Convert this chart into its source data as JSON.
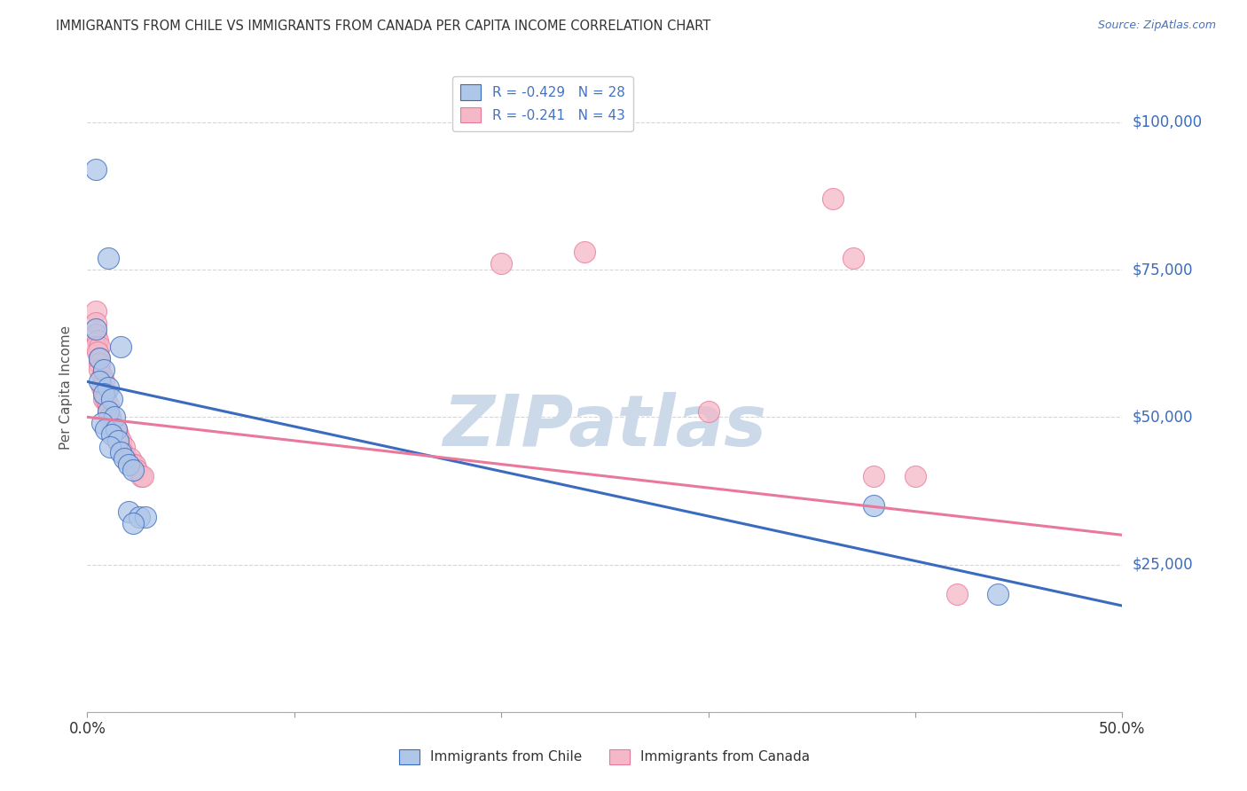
{
  "title": "IMMIGRANTS FROM CHILE VS IMMIGRANTS FROM CANADA PER CAPITA INCOME CORRELATION CHART",
  "source": "Source: ZipAtlas.com",
  "ylabel": "Per Capita Income",
  "xlim": [
    0.0,
    0.5
  ],
  "ylim": [
    0,
    110000
  ],
  "xtick_positions": [
    0.0,
    0.1,
    0.2,
    0.3,
    0.4,
    0.5
  ],
  "xticklabels": [
    "0.0%",
    "",
    "",
    "",
    "",
    "50.0%"
  ],
  "ytick_positions": [
    0,
    25000,
    50000,
    75000,
    100000
  ],
  "ytick_labels": [
    "",
    "$25,000",
    "$50,000",
    "$75,000",
    "$100,000"
  ],
  "chile_color": "#aec6e8",
  "canada_color": "#f4b8c8",
  "chile_line_color": "#3a6bbf",
  "canada_line_color": "#e8799a",
  "watermark_text": "ZIPatlas",
  "watermark_color": "#ccd9e8",
  "background_color": "#ffffff",
  "grid_color": "#cccccc",
  "legend1_R": "-0.429",
  "legend1_N": "28",
  "legend2_R": "-0.241",
  "legend2_N": "43",
  "legend1_label": "Immigrants from Chile",
  "legend2_label": "Immigrants from Canada",
  "chile_line_x0": 0.0,
  "chile_line_y0": 56000,
  "chile_line_x1": 0.5,
  "chile_line_y1": 18000,
  "canada_line_x0": 0.0,
  "canada_line_y0": 50000,
  "canada_line_x1": 0.5,
  "canada_line_y1": 30000,
  "chile_points": [
    [
      0.004,
      92000
    ],
    [
      0.01,
      77000
    ],
    [
      0.004,
      65000
    ],
    [
      0.016,
      62000
    ],
    [
      0.006,
      60000
    ],
    [
      0.008,
      58000
    ],
    [
      0.006,
      56000
    ],
    [
      0.01,
      55000
    ],
    [
      0.008,
      54000
    ],
    [
      0.012,
      53000
    ],
    [
      0.01,
      51000
    ],
    [
      0.013,
      50000
    ],
    [
      0.007,
      49000
    ],
    [
      0.009,
      48000
    ],
    [
      0.014,
      48000
    ],
    [
      0.012,
      47000
    ],
    [
      0.015,
      46000
    ],
    [
      0.011,
      45000
    ],
    [
      0.016,
      44000
    ],
    [
      0.018,
      43000
    ],
    [
      0.02,
      42000
    ],
    [
      0.022,
      41000
    ],
    [
      0.02,
      34000
    ],
    [
      0.025,
      33000
    ],
    [
      0.028,
      33000
    ],
    [
      0.022,
      32000
    ],
    [
      0.38,
      35000
    ],
    [
      0.44,
      20000
    ]
  ],
  "canada_points": [
    [
      0.004,
      68000
    ],
    [
      0.004,
      66000
    ],
    [
      0.004,
      64000
    ],
    [
      0.005,
      63000
    ],
    [
      0.004,
      62000
    ],
    [
      0.006,
      62000
    ],
    [
      0.005,
      61000
    ],
    [
      0.006,
      60000
    ],
    [
      0.006,
      59000
    ],
    [
      0.006,
      58000
    ],
    [
      0.007,
      57000
    ],
    [
      0.008,
      56000
    ],
    [
      0.007,
      55000
    ],
    [
      0.009,
      54000
    ],
    [
      0.008,
      53000
    ],
    [
      0.009,
      53000
    ],
    [
      0.01,
      52000
    ],
    [
      0.01,
      51000
    ],
    [
      0.011,
      50000
    ],
    [
      0.011,
      50000
    ],
    [
      0.012,
      49000
    ],
    [
      0.014,
      48000
    ],
    [
      0.013,
      47000
    ],
    [
      0.015,
      47000
    ],
    [
      0.015,
      46000
    ],
    [
      0.016,
      46000
    ],
    [
      0.018,
      45000
    ],
    [
      0.017,
      44000
    ],
    [
      0.019,
      43000
    ],
    [
      0.021,
      43000
    ],
    [
      0.022,
      42000
    ],
    [
      0.023,
      42000
    ],
    [
      0.024,
      41000
    ],
    [
      0.026,
      40000
    ],
    [
      0.027,
      40000
    ],
    [
      0.2,
      76000
    ],
    [
      0.24,
      78000
    ],
    [
      0.36,
      87000
    ],
    [
      0.37,
      77000
    ],
    [
      0.3,
      51000
    ],
    [
      0.38,
      40000
    ],
    [
      0.4,
      40000
    ],
    [
      0.42,
      20000
    ]
  ]
}
